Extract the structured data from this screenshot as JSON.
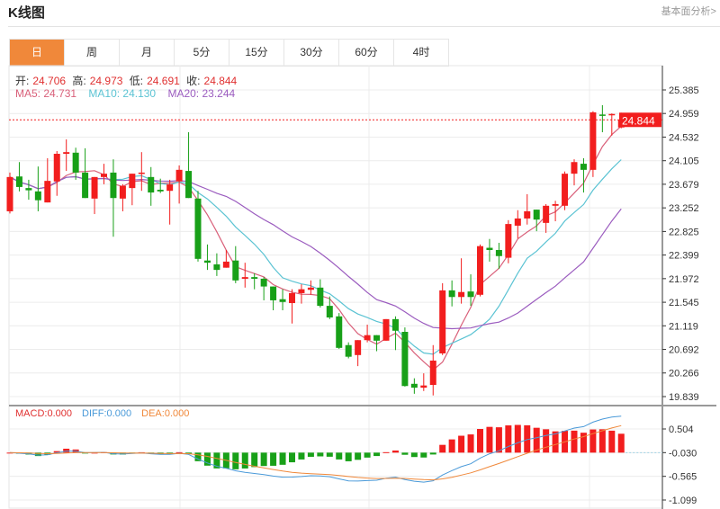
{
  "header": {
    "title": "K线图",
    "link": "基本面分析>"
  },
  "tabs": [
    {
      "label": "日",
      "active": true
    },
    {
      "label": "周"
    },
    {
      "label": "月"
    },
    {
      "label": "5分"
    },
    {
      "label": "15分"
    },
    {
      "label": "30分"
    },
    {
      "label": "60分"
    },
    {
      "label": "4时"
    }
  ],
  "ohlc": {
    "open_label": "开:",
    "open": "24.706",
    "high_label": "高:",
    "high": "24.973",
    "low_label": "低:",
    "low": "24.691",
    "close_label": "收:",
    "close": "24.844"
  },
  "ma": {
    "ma5_label": "MA5: ",
    "ma5": "24.731",
    "ma10_label": "MA10: ",
    "ma10": "24.130",
    "ma20_label": "MA20: ",
    "ma20": "23.244"
  },
  "macd": {
    "macd_label": "MACD:",
    "macd": "0.000",
    "diff_label": "DIFF:",
    "diff": "0.000",
    "dea_label": "DEA:",
    "dea": "0.000"
  },
  "colors": {
    "up": "#f21e1e",
    "down": "#18a018",
    "ma5": "#d9607a",
    "ma10": "#5bc3d3",
    "ma20": "#9b5cbf",
    "diff": "#4a9ad9",
    "dea": "#f0883a",
    "tab_active": "#f0883a"
  },
  "chart_data": [
    {
      "type": "candlestick",
      "current_price": "24.844",
      "y_ticks": [
        "25.385",
        "24.959",
        "24.532",
        "24.105",
        "23.679",
        "23.252",
        "22.825",
        "22.399",
        "21.972",
        "21.545",
        "21.119",
        "20.692",
        "20.266",
        "19.839"
      ],
      "ylim": [
        19.839,
        25.385
      ],
      "candles": [
        [
          23.19,
          23.89,
          23.15,
          23.81
        ],
        [
          23.82,
          24.08,
          23.55,
          23.63
        ],
        [
          23.61,
          23.76,
          23.4,
          23.57
        ],
        [
          23.55,
          24.0,
          23.19,
          23.39
        ],
        [
          23.35,
          24.15,
          23.35,
          23.74
        ],
        [
          23.73,
          24.28,
          23.47,
          24.23
        ],
        [
          24.23,
          24.49,
          23.92,
          24.26
        ],
        [
          24.25,
          24.34,
          23.76,
          23.89
        ],
        [
          23.89,
          24.33,
          23.43,
          23.43
        ],
        [
          23.42,
          23.81,
          23.14,
          23.81
        ],
        [
          23.81,
          24.05,
          23.68,
          23.87
        ],
        [
          23.89,
          24.13,
          22.73,
          23.43
        ],
        [
          23.42,
          23.68,
          23.19,
          23.65
        ],
        [
          23.61,
          23.87,
          23.3,
          23.87
        ],
        [
          23.87,
          24.26,
          23.56,
          23.89
        ],
        [
          23.81,
          23.99,
          23.29,
          23.53
        ],
        [
          23.58,
          23.78,
          23.52,
          23.55
        ],
        [
          23.56,
          23.76,
          22.95,
          23.68
        ],
        [
          23.73,
          24.02,
          23.33,
          23.94
        ],
        [
          23.92,
          24.62,
          23.43,
          23.43
        ],
        [
          23.42,
          23.56,
          22.28,
          22.33
        ],
        [
          22.3,
          22.59,
          22.13,
          22.26
        ],
        [
          22.23,
          22.43,
          22.02,
          22.13
        ],
        [
          22.17,
          22.49,
          22.17,
          22.28
        ],
        [
          22.3,
          22.56,
          21.89,
          21.94
        ],
        [
          21.97,
          22.26,
          21.81,
          22.0
        ],
        [
          22.0,
          22.07,
          21.78,
          21.97
        ],
        [
          21.97,
          22.0,
          21.58,
          21.83
        ],
        [
          21.83,
          21.83,
          21.4,
          21.58
        ],
        [
          21.6,
          21.78,
          21.4,
          21.55
        ],
        [
          21.53,
          21.78,
          21.16,
          21.71
        ],
        [
          21.71,
          21.87,
          21.52,
          21.78
        ],
        [
          21.77,
          21.94,
          21.68,
          21.81
        ],
        [
          21.81,
          21.96,
          21.45,
          21.48
        ],
        [
          21.48,
          21.65,
          21.24,
          21.27
        ],
        [
          21.29,
          21.35,
          20.7,
          20.72
        ],
        [
          20.77,
          20.82,
          20.53,
          20.56
        ],
        [
          20.59,
          20.86,
          20.39,
          20.86
        ],
        [
          20.86,
          21.14,
          20.82,
          20.95
        ],
        [
          20.95,
          20.95,
          20.66,
          20.85
        ],
        [
          20.85,
          21.24,
          20.85,
          21.24
        ],
        [
          21.24,
          21.29,
          20.68,
          21.03
        ],
        [
          21.01,
          21.09,
          20.02,
          20.03
        ],
        [
          20.07,
          20.17,
          19.89,
          20.0
        ],
        [
          20.0,
          20.26,
          19.94,
          20.04
        ],
        [
          20.05,
          20.77,
          19.86,
          20.49
        ],
        [
          20.62,
          21.89,
          20.59,
          21.76
        ],
        [
          21.76,
          21.94,
          21.47,
          21.64
        ],
        [
          21.64,
          22.34,
          21.52,
          21.73
        ],
        [
          21.74,
          22.05,
          21.48,
          21.64
        ],
        [
          21.68,
          22.59,
          21.65,
          22.56
        ],
        [
          22.53,
          22.69,
          22.28,
          22.49
        ],
        [
          22.49,
          22.62,
          22.15,
          22.38
        ],
        [
          22.35,
          23.03,
          22.25,
          22.96
        ],
        [
          22.93,
          23.21,
          22.7,
          23.06
        ],
        [
          23.06,
          23.5,
          22.95,
          23.19
        ],
        [
          23.22,
          23.22,
          22.83,
          23.04
        ],
        [
          22.98,
          23.32,
          22.8,
          23.29
        ],
        [
          23.29,
          23.38,
          23.01,
          23.32
        ],
        [
          23.29,
          23.91,
          23.21,
          23.87
        ],
        [
          23.87,
          24.13,
          23.66,
          24.08
        ],
        [
          24.05,
          24.15,
          23.53,
          23.94
        ],
        [
          23.94,
          25.0,
          23.81,
          24.98
        ],
        [
          24.94,
          25.11,
          24.62,
          24.93
        ],
        [
          24.93,
          24.96,
          24.56,
          24.95
        ],
        [
          24.706,
          24.973,
          24.691,
          24.844
        ]
      ],
      "candle_format": [
        "open",
        "high",
        "low",
        "close"
      ],
      "series": [
        {
          "name": "MA5",
          "period": 5
        },
        {
          "name": "MA10",
          "period": 10
        },
        {
          "name": "MA20",
          "period": 20
        }
      ]
    },
    {
      "type": "macd",
      "y_ticks": [
        "0.504",
        "-0.030",
        "-0.565",
        "-1.099"
      ],
      "ylim": [
        -1.099,
        0.504
      ]
    }
  ]
}
